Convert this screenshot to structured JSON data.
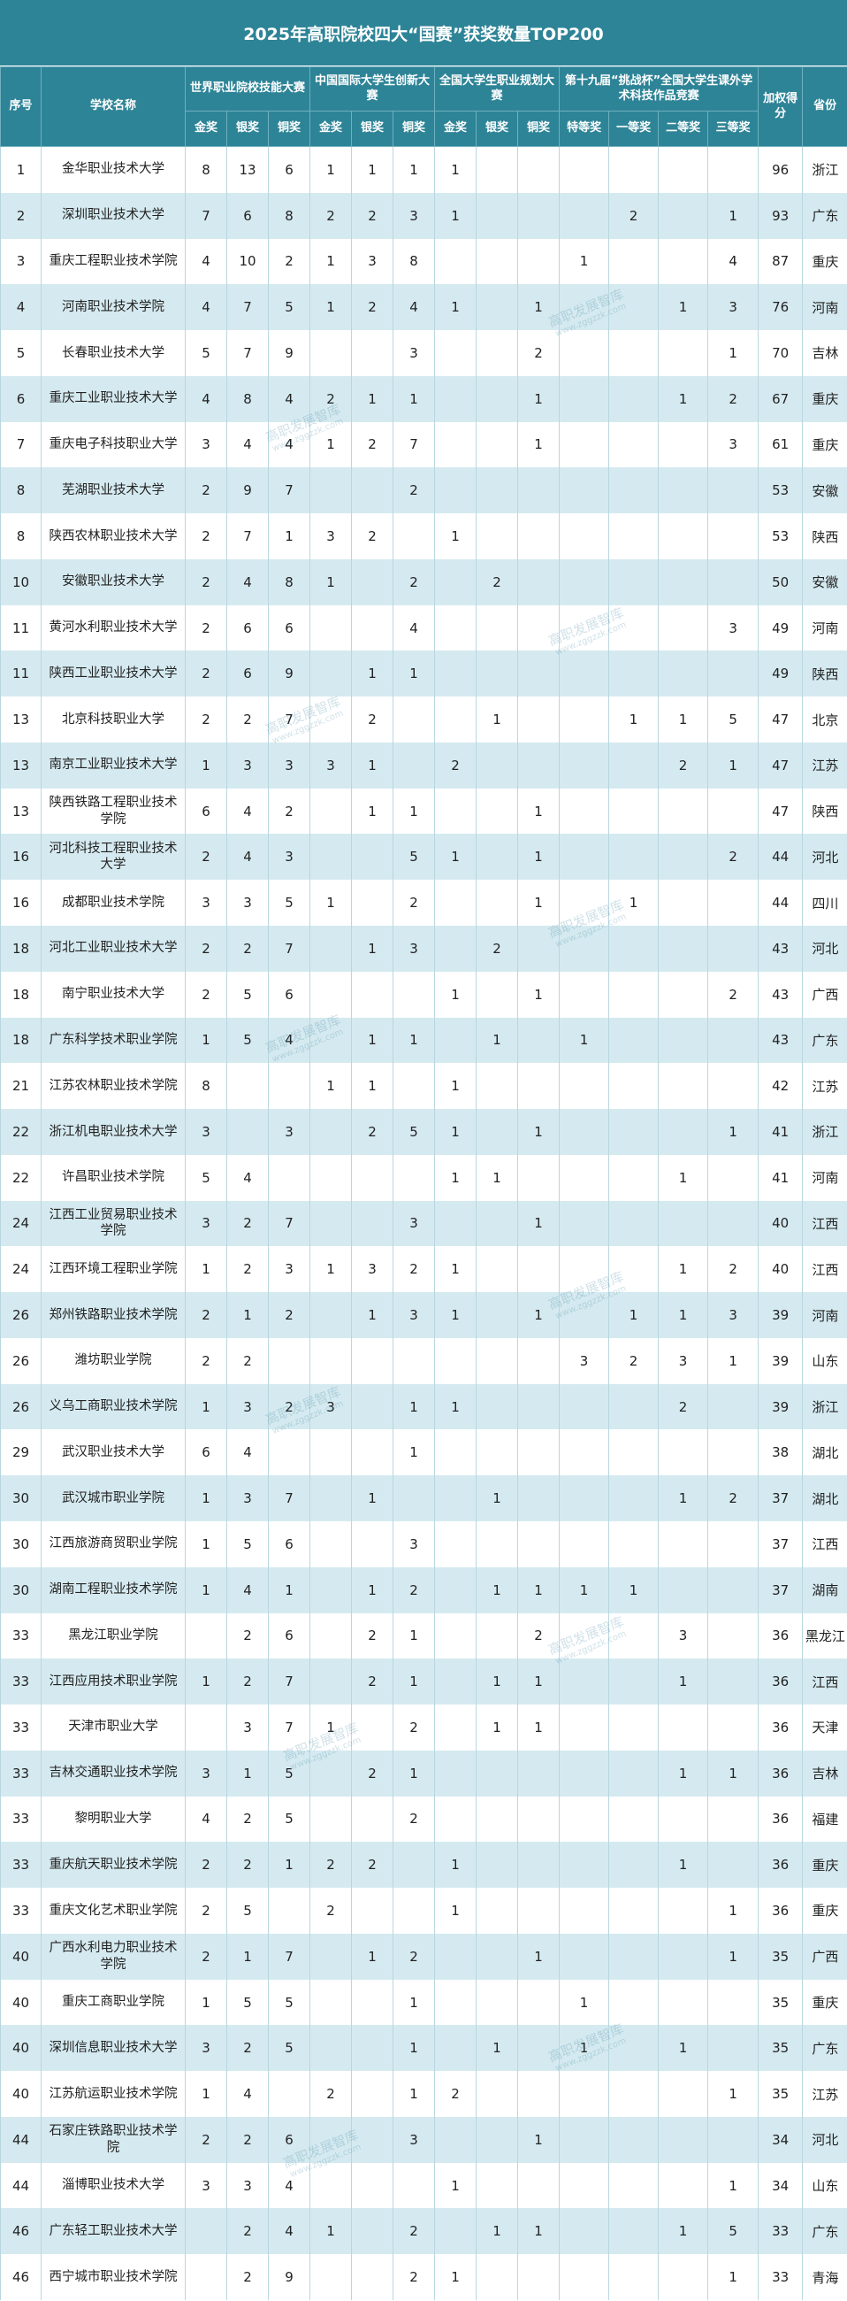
{
  "header": {
    "title": "2025年高职院校四大“国赛”获奖数量TOP200"
  },
  "watermark": {
    "text": "高职发展智库",
    "url": "www.zggzzk.com"
  },
  "table": {
    "rank_label": "序号",
    "name_label": "学校名称",
    "groups": [
      {
        "name": "世界职业院校技能大赛",
        "subs": [
          "金奖",
          "银奖",
          "铜奖"
        ]
      },
      {
        "name": "中国国际大学生创新大赛",
        "subs": [
          "金奖",
          "银奖",
          "铜奖"
        ]
      },
      {
        "name": "全国大学生职业规划大赛",
        "subs": [
          "金奖",
          "银奖",
          "铜奖"
        ]
      },
      {
        "name": "第十九届“挑战杯”全国大学生课外学术科技作品竞赛",
        "subs": [
          "特等奖",
          "一等奖",
          "二等奖",
          "三等奖"
        ]
      }
    ],
    "score_label": "加权得分",
    "province_label": "省份",
    "rows": [
      [
        1,
        "金华职业技术大学",
        8,
        13,
        6,
        1,
        1,
        1,
        1,
        null,
        null,
        null,
        null,
        null,
        null,
        96,
        "浙江"
      ],
      [
        2,
        "深圳职业技术大学",
        7,
        6,
        8,
        2,
        2,
        3,
        1,
        null,
        null,
        null,
        2,
        null,
        1,
        93,
        "广东"
      ],
      [
        3,
        "重庆工程职业技术学院",
        4,
        10,
        2,
        1,
        3,
        8,
        null,
        null,
        null,
        1,
        null,
        null,
        4,
        87,
        "重庆"
      ],
      [
        4,
        "河南职业技术学院",
        4,
        7,
        5,
        1,
        2,
        4,
        1,
        null,
        1,
        null,
        null,
        1,
        3,
        76,
        "河南"
      ],
      [
        5,
        "长春职业技术大学",
        5,
        7,
        9,
        null,
        null,
        3,
        null,
        null,
        2,
        null,
        null,
        null,
        1,
        70,
        "吉林"
      ],
      [
        6,
        "重庆工业职业技术大学",
        4,
        8,
        4,
        2,
        1,
        1,
        null,
        null,
        1,
        null,
        null,
        1,
        2,
        67,
        "重庆"
      ],
      [
        7,
        "重庆电子科技职业大学",
        3,
        4,
        4,
        1,
        2,
        7,
        null,
        null,
        1,
        null,
        null,
        null,
        3,
        61,
        "重庆"
      ],
      [
        8,
        "芜湖职业技术大学",
        2,
        9,
        7,
        null,
        null,
        2,
        null,
        null,
        null,
        null,
        null,
        null,
        null,
        53,
        "安徽"
      ],
      [
        8,
        "陕西农林职业技术大学",
        2,
        7,
        1,
        3,
        2,
        null,
        1,
        null,
        null,
        null,
        null,
        null,
        null,
        53,
        "陕西"
      ],
      [
        10,
        "安徽职业技术大学",
        2,
        4,
        8,
        1,
        null,
        2,
        null,
        2,
        null,
        null,
        null,
        null,
        null,
        50,
        "安徽"
      ],
      [
        11,
        "黄河水利职业技术大学",
        2,
        6,
        6,
        null,
        null,
        4,
        null,
        null,
        null,
        null,
        null,
        null,
        3,
        49,
        "河南"
      ],
      [
        11,
        "陕西工业职业技术大学",
        2,
        6,
        9,
        null,
        1,
        1,
        null,
        null,
        null,
        null,
        null,
        null,
        null,
        49,
        "陕西"
      ],
      [
        13,
        "北京科技职业大学",
        2,
        2,
        7,
        null,
        2,
        null,
        null,
        1,
        null,
        null,
        1,
        1,
        5,
        47,
        "北京"
      ],
      [
        13,
        "南京工业职业技术大学",
        1,
        3,
        3,
        3,
        1,
        null,
        2,
        null,
        null,
        null,
        null,
        2,
        1,
        47,
        "江苏"
      ],
      [
        13,
        "陕西铁路工程职业技术学院",
        6,
        4,
        2,
        null,
        1,
        1,
        null,
        null,
        1,
        null,
        null,
        null,
        null,
        47,
        "陕西"
      ],
      [
        16,
        "河北科技工程职业技术大学",
        2,
        4,
        3,
        null,
        null,
        5,
        1,
        null,
        1,
        null,
        null,
        null,
        2,
        44,
        "河北"
      ],
      [
        16,
        "成都职业技术学院",
        3,
        3,
        5,
        1,
        null,
        2,
        null,
        null,
        1,
        null,
        1,
        null,
        null,
        44,
        "四川"
      ],
      [
        18,
        "河北工业职业技术大学",
        2,
        2,
        7,
        null,
        1,
        3,
        null,
        2,
        null,
        null,
        null,
        null,
        null,
        43,
        "河北"
      ],
      [
        18,
        "南宁职业技术大学",
        2,
        5,
        6,
        null,
        null,
        null,
        1,
        null,
        1,
        null,
        null,
        null,
        2,
        43,
        "广西"
      ],
      [
        18,
        "广东科学技术职业学院",
        1,
        5,
        4,
        null,
        1,
        1,
        null,
        1,
        null,
        1,
        null,
        null,
        null,
        43,
        "广东"
      ],
      [
        21,
        "江苏农林职业技术学院",
        8,
        null,
        null,
        1,
        1,
        null,
        1,
        null,
        null,
        null,
        null,
        null,
        null,
        42,
        "江苏"
      ],
      [
        22,
        "浙江机电职业技术大学",
        3,
        null,
        3,
        null,
        2,
        5,
        1,
        null,
        1,
        null,
        null,
        null,
        1,
        41,
        "浙江"
      ],
      [
        22,
        "许昌职业技术学院",
        5,
        4,
        null,
        null,
        null,
        null,
        1,
        1,
        null,
        null,
        null,
        1,
        null,
        41,
        "河南"
      ],
      [
        24,
        "江西工业贸易职业技术学院",
        3,
        2,
        7,
        null,
        null,
        3,
        null,
        null,
        1,
        null,
        null,
        null,
        null,
        40,
        "江西"
      ],
      [
        24,
        "江西环境工程职业学院",
        1,
        2,
        3,
        1,
        3,
        2,
        1,
        null,
        null,
        null,
        null,
        1,
        2,
        40,
        "江西"
      ],
      [
        26,
        "郑州铁路职业技术学院",
        2,
        1,
        2,
        null,
        1,
        3,
        1,
        null,
        1,
        null,
        1,
        1,
        3,
        39,
        "河南"
      ],
      [
        26,
        "潍坊职业学院",
        2,
        2,
        null,
        null,
        null,
        null,
        null,
        null,
        null,
        3,
        2,
        3,
        1,
        39,
        "山东"
      ],
      [
        26,
        "义乌工商职业技术学院",
        1,
        3,
        2,
        3,
        null,
        1,
        1,
        null,
        null,
        null,
        null,
        2,
        null,
        39,
        "浙江"
      ],
      [
        29,
        "武汉职业技术大学",
        6,
        4,
        null,
        null,
        null,
        1,
        null,
        null,
        null,
        null,
        null,
        null,
        null,
        38,
        "湖北"
      ],
      [
        30,
        "武汉城市职业学院",
        1,
        3,
        7,
        null,
        1,
        null,
        null,
        1,
        null,
        null,
        null,
        1,
        2,
        37,
        "湖北"
      ],
      [
        30,
        "江西旅游商贸职业学院",
        1,
        5,
        6,
        null,
        null,
        3,
        null,
        null,
        null,
        null,
        null,
        null,
        null,
        37,
        "江西"
      ],
      [
        30,
        "湖南工程职业技术学院",
        1,
        4,
        1,
        null,
        1,
        2,
        null,
        1,
        1,
        1,
        1,
        null,
        null,
        37,
        "湖南"
      ],
      [
        33,
        "黑龙江职业学院",
        null,
        2,
        6,
        null,
        2,
        1,
        null,
        null,
        2,
        null,
        null,
        3,
        null,
        36,
        "黑龙江"
      ],
      [
        33,
        "江西应用技术职业学院",
        1,
        2,
        7,
        null,
        2,
        1,
        null,
        1,
        1,
        null,
        null,
        1,
        null,
        36,
        "江西"
      ],
      [
        33,
        "天津市职业大学",
        null,
        3,
        7,
        1,
        null,
        2,
        null,
        1,
        1,
        null,
        null,
        null,
        null,
        36,
        "天津"
      ],
      [
        33,
        "吉林交通职业技术学院",
        3,
        1,
        5,
        null,
        2,
        1,
        null,
        null,
        null,
        null,
        null,
        1,
        1,
        36,
        "吉林"
      ],
      [
        33,
        "黎明职业大学",
        4,
        2,
        5,
        null,
        null,
        2,
        null,
        null,
        null,
        null,
        null,
        null,
        null,
        36,
        "福建"
      ],
      [
        33,
        "重庆航天职业技术学院",
        2,
        2,
        1,
        2,
        2,
        null,
        1,
        null,
        null,
        null,
        null,
        1,
        null,
        36,
        "重庆"
      ],
      [
        33,
        "重庆文化艺术职业学院",
        2,
        5,
        null,
        2,
        null,
        null,
        1,
        null,
        null,
        null,
        null,
        null,
        1,
        36,
        "重庆"
      ],
      [
        40,
        "广西水利电力职业技术学院",
        2,
        1,
        7,
        null,
        1,
        2,
        null,
        null,
        1,
        null,
        null,
        null,
        1,
        35,
        "广西"
      ],
      [
        40,
        "重庆工商职业学院",
        1,
        5,
        5,
        null,
        null,
        1,
        null,
        null,
        null,
        1,
        null,
        null,
        null,
        35,
        "重庆"
      ],
      [
        40,
        "深圳信息职业技术大学",
        3,
        2,
        5,
        null,
        null,
        1,
        null,
        1,
        null,
        1,
        null,
        1,
        null,
        35,
        "广东"
      ],
      [
        40,
        "江苏航运职业技术学院",
        1,
        4,
        null,
        2,
        null,
        1,
        2,
        null,
        null,
        null,
        null,
        null,
        1,
        35,
        "江苏"
      ],
      [
        44,
        "石家庄铁路职业技术学院",
        2,
        2,
        6,
        null,
        null,
        3,
        null,
        null,
        1,
        null,
        null,
        null,
        null,
        34,
        "河北"
      ],
      [
        44,
        "淄博职业技术大学",
        3,
        3,
        4,
        null,
        null,
        null,
        1,
        null,
        null,
        null,
        null,
        null,
        1,
        34,
        "山东"
      ],
      [
        46,
        "广东轻工职业技术大学",
        null,
        2,
        4,
        1,
        null,
        2,
        null,
        1,
        1,
        null,
        null,
        1,
        5,
        33,
        "广东"
      ],
      [
        46,
        "西宁城市职业技术学院",
        null,
        2,
        9,
        null,
        null,
        2,
        1,
        null,
        null,
        null,
        null,
        null,
        1,
        33,
        "青海"
      ]
    ]
  }
}
